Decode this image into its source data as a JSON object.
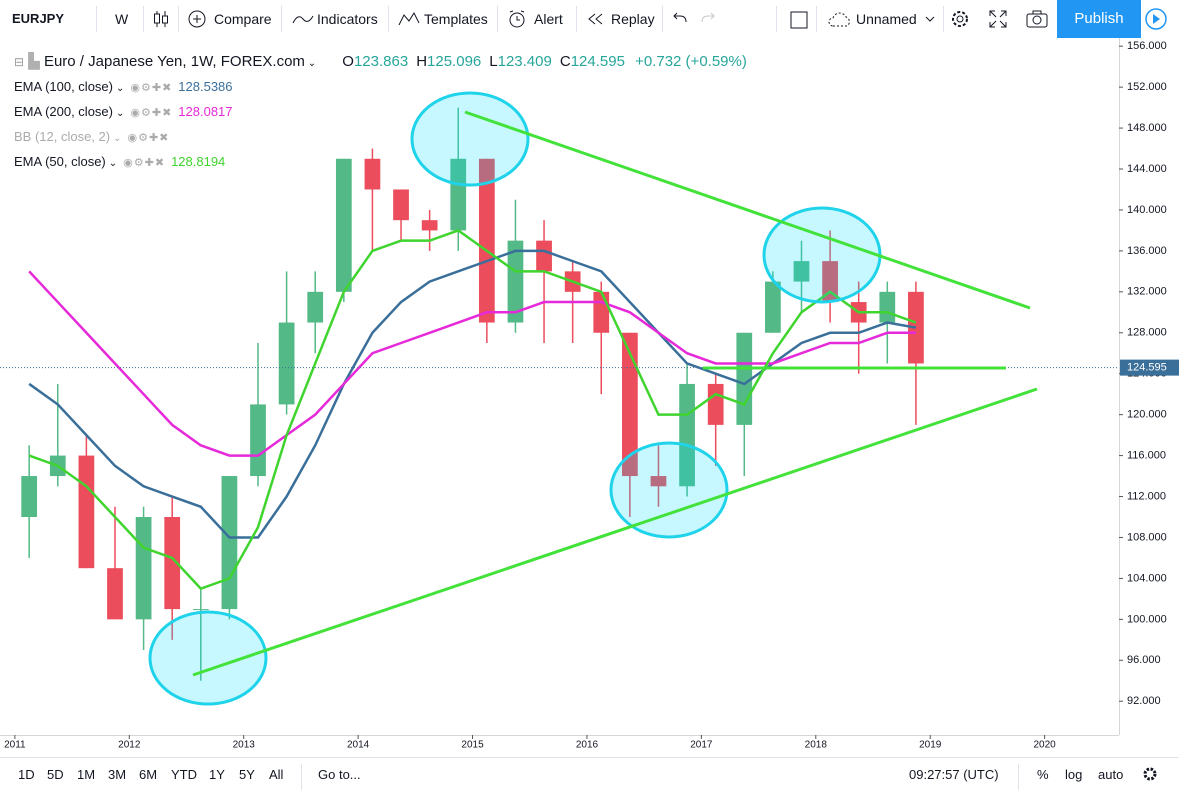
{
  "toolbar": {
    "symbol": "EURJPY",
    "interval": "W",
    "compare": "Compare",
    "indicators": "Indicators",
    "templates": "Templates",
    "alert": "Alert",
    "replay": "Replay",
    "layout_name": "Unnamed",
    "publish": "Publish"
  },
  "bottom_bar": {
    "ranges": [
      "1D",
      "5D",
      "1M",
      "3M",
      "6M",
      "YTD",
      "1Y",
      "5Y",
      "All"
    ],
    "goto": "Go to...",
    "clock": "09:27:57 (UTC)",
    "percent": "%",
    "log": "log",
    "auto": "auto"
  },
  "chart_data": {
    "type": "candlestick",
    "title": "Euro / Japanese Yen, 1W, FOREX.com",
    "ohlc": [
      {
        "label": "O",
        "value": 123.863
      },
      {
        "label": "H",
        "value": 125.096
      },
      {
        "label": "L",
        "value": 123.409
      },
      {
        "label": "C",
        "value": 124.595
      }
    ],
    "change": "+0.732 (+0.59%)",
    "x": [
      2011.125,
      2011.375,
      2011.625,
      2011.875,
      2012.125,
      2012.375,
      2012.625,
      2012.875,
      2013.125,
      2013.375,
      2013.625,
      2013.875,
      2014.125,
      2014.375,
      2014.625,
      2014.875,
      2015.125,
      2015.375,
      2015.625,
      2015.875,
      2016.125,
      2016.375,
      2016.625,
      2016.875,
      2017.125,
      2017.375,
      2017.625,
      2017.875,
      2018.125,
      2018.375,
      2018.625,
      2018.875
    ],
    "open": [
      110,
      114,
      116,
      105,
      100,
      110,
      101,
      101,
      114,
      121,
      129,
      132,
      145,
      142,
      139,
      138,
      145,
      129,
      137,
      134,
      132,
      128,
      114,
      113,
      123,
      119,
      128,
      133,
      135,
      131,
      129,
      132
    ],
    "high": [
      117,
      123,
      118,
      111,
      111,
      112,
      103,
      114,
      127,
      134,
      134,
      145,
      146,
      142,
      140,
      150,
      145,
      141,
      139,
      135,
      133,
      128,
      117,
      125,
      124,
      128,
      134,
      137,
      138,
      133,
      133,
      133
    ],
    "low": [
      106,
      113,
      105,
      100,
      97,
      98,
      94,
      100,
      113,
      120,
      126,
      131,
      136,
      137,
      136,
      136,
      127,
      128,
      127,
      127,
      122,
      110,
      111,
      112,
      115,
      114,
      128,
      130,
      129,
      124,
      125,
      119
    ],
    "close": [
      114,
      116,
      105,
      100,
      110,
      101,
      101,
      114,
      121,
      129,
      132,
      145,
      142,
      139,
      138,
      145,
      129,
      137,
      134,
      132,
      128,
      114,
      113,
      123,
      119,
      128,
      133,
      135,
      131,
      129,
      132,
      125
    ],
    "up_color": "#53b987",
    "down_color": "#eb4d5c",
    "series": [
      {
        "name": "EMA (100, close)",
        "color": "#3a6f9a",
        "last": 128.5386,
        "values": [
          123,
          121,
          118,
          115,
          113,
          112,
          111,
          108,
          108,
          112,
          117,
          123,
          128,
          131,
          133,
          134,
          135,
          136,
          136,
          135,
          134,
          131,
          128,
          125,
          124,
          123,
          125,
          127,
          128,
          128,
          129,
          128.5
        ]
      },
      {
        "name": "EMA (200, close)",
        "color": "#e629d9",
        "last": 128.0817,
        "values": [
          134,
          131,
          128,
          125,
          122,
          119,
          117,
          116,
          116,
          118,
          120,
          123,
          126,
          127,
          128,
          129,
          130,
          130,
          131,
          131,
          131,
          130,
          128,
          126,
          125,
          125,
          125,
          126,
          127,
          127,
          128,
          128
        ]
      },
      {
        "name": "BB (12, close, 2)",
        "visible": false
      },
      {
        "name": "EMA (50, close)",
        "color": "#3fd42e",
        "last": 128.8194,
        "values": [
          116,
          115,
          113,
          110,
          107,
          106,
          103,
          104,
          109,
          118,
          125,
          132,
          136,
          137,
          137,
          138,
          136,
          134,
          134,
          133,
          132,
          126,
          120,
          120,
          122,
          121,
          126,
          130,
          132,
          130,
          130,
          129
        ]
      }
    ],
    "xlim": [
      2010.87,
      2020.65
    ],
    "ylim": [
      88.7,
      156.8
    ],
    "xticks": [
      2011,
      2012,
      2013,
      2014,
      2015,
      2016,
      2017,
      2018,
      2019,
      2020
    ],
    "yticks": [
      {
        "value": 92,
        "label": "92.000"
      },
      {
        "value": 96,
        "label": "96.000"
      },
      {
        "value": 100,
        "label": "100.000"
      },
      {
        "value": 104,
        "label": "104.000"
      },
      {
        "value": 108,
        "label": "108.000"
      },
      {
        "value": 112,
        "label": "112.000"
      },
      {
        "value": 116,
        "label": "116.000"
      },
      {
        "value": 120,
        "label": "120.000"
      },
      {
        "value": 124,
        "label": "124.000"
      },
      {
        "value": 128,
        "label": "128.000"
      },
      {
        "value": 132,
        "label": "132.000"
      },
      {
        "value": 136,
        "label": "136.000"
      },
      {
        "value": 140,
        "label": "140.000"
      },
      {
        "value": 144,
        "label": "144.000"
      },
      {
        "value": 148,
        "label": "148.000"
      },
      {
        "value": 152,
        "label": "152.000"
      },
      {
        "value": 156,
        "label": "156.000"
      }
    ]
  }
}
